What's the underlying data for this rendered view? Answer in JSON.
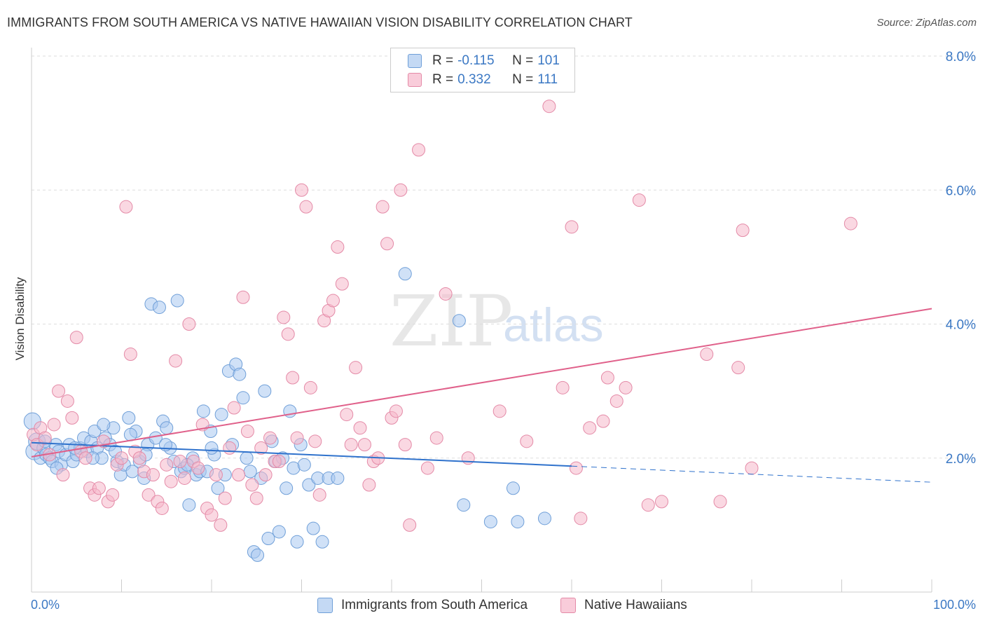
{
  "header": {
    "title": "IMMIGRANTS FROM SOUTH AMERICA VS NATIVE HAWAIIAN VISION DISABILITY CORRELATION CHART",
    "source": "Source: ZipAtlas.com"
  },
  "watermark": {
    "zip": "ZIP",
    "atlas": "atlas"
  },
  "legend": {
    "rows": [
      {
        "r_label": "R =",
        "r_value": "-0.115",
        "n_label": "N =",
        "n_value": "101",
        "color": "#a9c8f0"
      },
      {
        "r_label": "R =",
        "r_value": "0.332",
        "n_label": "N =",
        "n_value": "111",
        "color": "#f6b8cb"
      }
    ]
  },
  "chart_data": {
    "type": "scatter",
    "title": "IMMIGRANTS FROM SOUTH AMERICA VS NATIVE HAWAIIAN VISION DISABILITY CORRELATION CHART",
    "xlabel": "",
    "ylabel": "Vision Disability",
    "xlim": [
      0,
      100
    ],
    "ylim": [
      0,
      8.0
    ],
    "x_tick_labels": [
      "0.0%",
      "100.0%"
    ],
    "y_ticks": [
      2.0,
      4.0,
      6.0,
      8.0
    ],
    "y_tick_labels": [
      "2.0%",
      "4.0%",
      "6.0%",
      "8.0%"
    ],
    "grid": "horizontal dashed",
    "legend_position": "top-center",
    "series": [
      {
        "name": "Immigrants from South America",
        "color": "#a9c8f0",
        "stroke": "#6f9fd8",
        "trend": {
          "x0": 0,
          "y0": 2.23,
          "x1": 60,
          "y1": 1.88,
          "dash_to_x": 100,
          "dash_to_y": 1.64,
          "color": "#2f72cc"
        },
        "points": [
          [
            0.1,
            2.55
          ],
          [
            0.3,
            2.1
          ],
          [
            0.6,
            2.25
          ],
          [
            1.0,
            2.0
          ],
          [
            1.3,
            2.15
          ],
          [
            1.6,
            2.05
          ],
          [
            2.0,
            2.0
          ],
          [
            2.3,
            1.95
          ],
          [
            2.7,
            2.2
          ],
          [
            3.0,
            2.1
          ],
          [
            3.3,
            1.9
          ],
          [
            3.8,
            2.05
          ],
          [
            4.2,
            2.2
          ],
          [
            4.6,
            1.95
          ],
          [
            5.0,
            2.05
          ],
          [
            5.4,
            2.15
          ],
          [
            5.8,
            2.3
          ],
          [
            6.2,
            2.1
          ],
          [
            6.6,
            2.25
          ],
          [
            7.0,
            2.4
          ],
          [
            7.3,
            2.15
          ],
          [
            7.8,
            2.0
          ],
          [
            8.2,
            2.3
          ],
          [
            8.7,
            2.2
          ],
          [
            9.1,
            2.45
          ],
          [
            9.5,
            1.95
          ],
          [
            9.9,
            1.75
          ],
          [
            10.3,
            1.9
          ],
          [
            10.8,
            2.6
          ],
          [
            11.2,
            1.8
          ],
          [
            11.6,
            2.4
          ],
          [
            12.0,
            1.95
          ],
          [
            12.5,
            1.7
          ],
          [
            12.9,
            2.2
          ],
          [
            13.3,
            4.3
          ],
          [
            13.8,
            2.3
          ],
          [
            14.2,
            4.25
          ],
          [
            14.6,
            2.55
          ],
          [
            15.0,
            2.45
          ],
          [
            15.4,
            2.15
          ],
          [
            15.8,
            1.95
          ],
          [
            16.2,
            4.35
          ],
          [
            16.6,
            1.8
          ],
          [
            17.0,
            1.85
          ],
          [
            17.5,
            1.3
          ],
          [
            17.9,
            2.0
          ],
          [
            18.3,
            1.75
          ],
          [
            18.7,
            1.8
          ],
          [
            19.1,
            2.7
          ],
          [
            19.5,
            1.8
          ],
          [
            19.9,
            2.4
          ],
          [
            20.3,
            2.05
          ],
          [
            20.7,
            1.55
          ],
          [
            21.1,
            2.65
          ],
          [
            21.5,
            1.75
          ],
          [
            21.9,
            3.3
          ],
          [
            22.3,
            2.2
          ],
          [
            22.7,
            3.4
          ],
          [
            23.1,
            3.25
          ],
          [
            23.5,
            2.9
          ],
          [
            23.9,
            2.0
          ],
          [
            24.3,
            1.8
          ],
          [
            24.7,
            0.6
          ],
          [
            25.1,
            0.55
          ],
          [
            25.5,
            1.7
          ],
          [
            25.9,
            3.0
          ],
          [
            26.3,
            0.8
          ],
          [
            26.7,
            2.25
          ],
          [
            27.1,
            1.95
          ],
          [
            27.5,
            0.9
          ],
          [
            27.9,
            2.0
          ],
          [
            28.3,
            1.55
          ],
          [
            28.7,
            2.7
          ],
          [
            29.1,
            1.85
          ],
          [
            29.5,
            0.75
          ],
          [
            29.9,
            2.2
          ],
          [
            30.3,
            1.9
          ],
          [
            30.8,
            1.6
          ],
          [
            31.3,
            0.95
          ],
          [
            31.8,
            1.7
          ],
          [
            32.3,
            0.75
          ],
          [
            33.0,
            1.7
          ],
          [
            34.0,
            1.7
          ],
          [
            41.5,
            4.75
          ],
          [
            47.5,
            4.05
          ],
          [
            48.0,
            1.3
          ],
          [
            51.0,
            1.05
          ],
          [
            53.5,
            1.55
          ],
          [
            54.0,
            1.05
          ],
          [
            57.0,
            1.1
          ],
          [
            1.5,
            2.25
          ],
          [
            2.8,
            1.85
          ],
          [
            4.8,
            2.15
          ],
          [
            6.8,
            2.0
          ],
          [
            8.0,
            2.5
          ],
          [
            9.3,
            2.1
          ],
          [
            11.0,
            2.35
          ],
          [
            12.7,
            2.05
          ],
          [
            14.9,
            2.2
          ],
          [
            17.3,
            1.9
          ],
          [
            20.0,
            2.15
          ]
        ]
      },
      {
        "name": "Native Hawaiians",
        "color": "#f6b8cb",
        "stroke": "#e48aa7",
        "trend": {
          "x0": 0,
          "y0": 2.02,
          "x1": 100,
          "y1": 4.23,
          "color": "#e0608a"
        },
        "points": [
          [
            0.2,
            2.35
          ],
          [
            0.6,
            2.2
          ],
          [
            1.0,
            2.45
          ],
          [
            1.5,
            2.3
          ],
          [
            2.0,
            2.05
          ],
          [
            2.5,
            2.5
          ],
          [
            3.0,
            3.0
          ],
          [
            3.5,
            1.75
          ],
          [
            4.0,
            2.85
          ],
          [
            4.5,
            2.6
          ],
          [
            5.0,
            3.8
          ],
          [
            5.5,
            2.1
          ],
          [
            6.0,
            2.0
          ],
          [
            6.5,
            1.55
          ],
          [
            7.0,
            1.45
          ],
          [
            7.5,
            1.55
          ],
          [
            8.0,
            2.25
          ],
          [
            8.5,
            1.35
          ],
          [
            9.0,
            1.45
          ],
          [
            9.5,
            1.9
          ],
          [
            10.0,
            2.0
          ],
          [
            10.5,
            5.75
          ],
          [
            11.0,
            3.55
          ],
          [
            11.5,
            2.1
          ],
          [
            12.0,
            2.0
          ],
          [
            12.5,
            1.8
          ],
          [
            13.0,
            1.45
          ],
          [
            13.5,
            1.75
          ],
          [
            14.0,
            1.35
          ],
          [
            14.5,
            1.25
          ],
          [
            15.0,
            1.9
          ],
          [
            15.5,
            1.65
          ],
          [
            16.0,
            3.45
          ],
          [
            16.5,
            1.95
          ],
          [
            17.0,
            1.7
          ],
          [
            17.5,
            4.0
          ],
          [
            18.0,
            1.95
          ],
          [
            18.5,
            1.85
          ],
          [
            19.0,
            2.5
          ],
          [
            19.5,
            1.25
          ],
          [
            20.0,
            1.15
          ],
          [
            20.5,
            1.75
          ],
          [
            21.0,
            1.0
          ],
          [
            21.5,
            1.4
          ],
          [
            22.0,
            2.15
          ],
          [
            22.5,
            2.75
          ],
          [
            23.0,
            1.75
          ],
          [
            23.5,
            4.4
          ],
          [
            24.0,
            2.4
          ],
          [
            24.5,
            1.6
          ],
          [
            25.0,
            1.4
          ],
          [
            25.5,
            2.15
          ],
          [
            26.0,
            1.75
          ],
          [
            26.5,
            2.3
          ],
          [
            27.0,
            1.95
          ],
          [
            27.5,
            1.95
          ],
          [
            28.0,
            4.1
          ],
          [
            28.5,
            3.85
          ],
          [
            29.0,
            3.2
          ],
          [
            29.5,
            2.3
          ],
          [
            30.0,
            6.0
          ],
          [
            30.5,
            5.75
          ],
          [
            31.0,
            3.05
          ],
          [
            31.5,
            2.25
          ],
          [
            32.0,
            1.45
          ],
          [
            32.5,
            4.05
          ],
          [
            33.0,
            4.2
          ],
          [
            33.5,
            4.35
          ],
          [
            34.0,
            5.15
          ],
          [
            34.5,
            4.6
          ],
          [
            35.0,
            2.65
          ],
          [
            35.5,
            2.2
          ],
          [
            36.0,
            3.35
          ],
          [
            36.5,
            2.45
          ],
          [
            37.0,
            2.2
          ],
          [
            37.5,
            1.6
          ],
          [
            38.0,
            1.95
          ],
          [
            38.5,
            2.0
          ],
          [
            39.0,
            5.75
          ],
          [
            39.5,
            5.2
          ],
          [
            40.0,
            2.6
          ],
          [
            40.5,
            2.7
          ],
          [
            41.0,
            6.0
          ],
          [
            41.5,
            2.2
          ],
          [
            42.0,
            1.0
          ],
          [
            43.0,
            6.6
          ],
          [
            45.0,
            2.3
          ],
          [
            46.0,
            4.45
          ],
          [
            57.5,
            7.25
          ],
          [
            59.0,
            3.05
          ],
          [
            60.0,
            5.45
          ],
          [
            61.0,
            1.1
          ],
          [
            62.0,
            2.45
          ],
          [
            63.5,
            2.55
          ],
          [
            64.0,
            3.2
          ],
          [
            65.0,
            2.85
          ],
          [
            66.0,
            3.05
          ],
          [
            67.5,
            5.85
          ],
          [
            68.5,
            1.3
          ],
          [
            70.0,
            1.35
          ],
          [
            75.0,
            3.55
          ],
          [
            76.5,
            1.35
          ],
          [
            78.5,
            3.35
          ],
          [
            79.0,
            5.4
          ],
          [
            80.0,
            1.85
          ],
          [
            91.0,
            5.5
          ],
          [
            60.5,
            1.85
          ],
          [
            52.0,
            2.7
          ],
          [
            55.0,
            2.25
          ],
          [
            48.5,
            2.0
          ],
          [
            44.0,
            1.85
          ]
        ]
      }
    ]
  }
}
